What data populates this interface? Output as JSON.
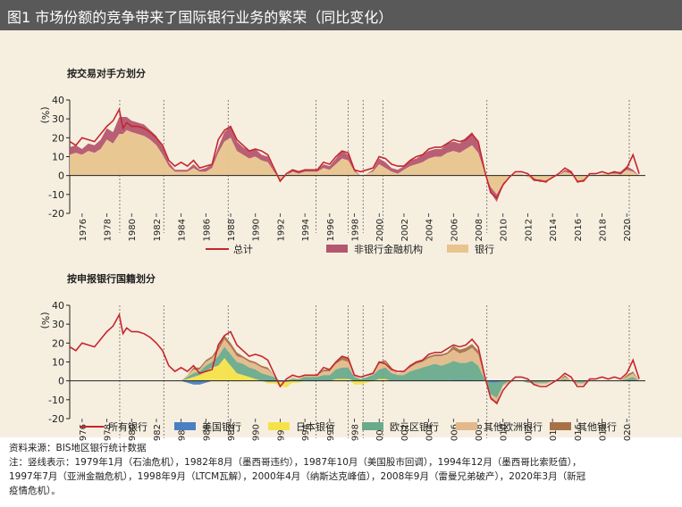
{
  "header": {
    "title": "图1  市场份额的竞争带来了国际银行业务的繁荣（同比变化）"
  },
  "colors": {
    "total_line": "#c6262e",
    "nonbank": "#b5566f",
    "banks": "#e8c48e",
    "us": "#4a7fc4",
    "japan": "#f5e24b",
    "euro": "#6aaa8c",
    "other_europe": "#e2b98b",
    "other": "#a87248",
    "background": "#f6efe0"
  },
  "chart_data": [
    {
      "type": "area",
      "title": "按交易对手方划分",
      "ylabel": "(%)",
      "ylim": [
        -20,
        40
      ],
      "yticks": [
        -20,
        -10,
        0,
        10,
        20,
        30,
        40
      ],
      "xlim": [
        1975,
        2021.5
      ],
      "xticks": [
        "1976",
        "1978",
        "1980",
        "1982",
        "1984",
        "1986",
        "1988",
        "1990",
        "1992",
        "1994",
        "1996",
        "1998",
        "2000",
        "2002",
        "2004",
        "2006",
        "2008",
        "2010",
        "2012",
        "2014",
        "2016",
        "2018",
        "2020"
      ],
      "event_lines": [
        1979.04,
        1982.6,
        1987.8,
        1994.9,
        1997.5,
        1998.7,
        2000.3,
        2008.7,
        2020.2
      ],
      "x": [
        1975.0,
        1975.5,
        1976.0,
        1976.5,
        1977.0,
        1977.5,
        1978.0,
        1978.5,
        1979.0,
        1979.3,
        1979.6,
        1980.0,
        1980.5,
        1981.0,
        1981.5,
        1982.0,
        1982.5,
        1983.0,
        1983.5,
        1984.0,
        1984.5,
        1985.0,
        1985.5,
        1986.0,
        1986.5,
        1987.0,
        1987.5,
        1988.0,
        1988.5,
        1989.0,
        1989.5,
        1990.0,
        1990.5,
        1991.0,
        1991.5,
        1992.0,
        1992.5,
        1993.0,
        1993.5,
        1994.0,
        1994.5,
        1995.0,
        1995.5,
        1996.0,
        1996.5,
        1997.0,
        1997.5,
        1998.0,
        1998.5,
        1999.0,
        1999.5,
        2000.0,
        2000.5,
        2001.0,
        2001.5,
        2002.0,
        2002.5,
        2003.0,
        2003.5,
        2004.0,
        2004.5,
        2005.0,
        2005.5,
        2006.0,
        2006.5,
        2007.0,
        2007.5,
        2008.0,
        2008.5,
        2009.0,
        2009.5,
        2010.0,
        2010.5,
        2011.0,
        2011.5,
        2012.0,
        2012.5,
        2013.0,
        2013.5,
        2014.0,
        2014.5,
        2015.0,
        2015.5,
        2016.0,
        2016.5,
        2017.0,
        2017.5,
        2018.0,
        2018.5,
        2019.0,
        2019.5,
        2020.0,
        2020.5,
        2021.0
      ],
      "series": [
        {
          "name": "银行",
          "values": [
            11,
            12,
            11,
            13,
            12,
            14,
            19,
            17,
            22,
            22,
            24,
            23,
            22,
            21,
            19,
            16,
            11,
            5,
            2,
            2,
            2,
            4,
            2,
            2,
            4,
            12,
            18,
            20,
            13,
            11,
            9,
            10,
            8,
            7,
            2,
            -2,
            0,
            2,
            1,
            2,
            2,
            2,
            4,
            3,
            6,
            9,
            8,
            2,
            0,
            1,
            2,
            6,
            4,
            2,
            1,
            3,
            5,
            6,
            7,
            9,
            10,
            10,
            12,
            13,
            12,
            14,
            16,
            12,
            2,
            -6,
            -10,
            -4,
            -1,
            1,
            1,
            -1,
            -2,
            -2,
            -3,
            -1,
            0,
            2,
            1,
            -3,
            -2,
            0,
            0,
            1,
            1,
            1,
            1,
            3,
            2,
            0
          ]
        },
        {
          "name": "非银行金融机构",
          "values": [
            4,
            4,
            3,
            4,
            4,
            5,
            6,
            6,
            9,
            9,
            7,
            6,
            6,
            6,
            5,
            5,
            4,
            2,
            1,
            1,
            1,
            2,
            1,
            2,
            2,
            3,
            5,
            6,
            5,
            4,
            4,
            4,
            3,
            3,
            1,
            -1,
            0,
            1,
            1,
            1,
            1,
            1,
            2,
            2,
            3,
            4,
            3,
            1,
            0,
            0,
            1,
            3,
            3,
            2,
            2,
            2,
            3,
            3,
            4,
            4,
            4,
            4,
            5,
            5,
            5,
            6,
            7,
            5,
            1,
            -3,
            -4,
            -1,
            0,
            0,
            0,
            0,
            -1,
            -1,
            -1,
            0,
            0,
            1,
            1,
            -1,
            -1,
            0,
            0,
            0,
            0,
            1,
            1,
            2,
            1,
            0
          ]
        },
        {
          "name": "总计",
          "values": [
            18,
            16,
            20,
            19,
            18,
            22,
            26,
            29,
            35,
            25,
            28,
            26,
            26,
            25,
            23,
            20,
            16,
            8,
            5,
            7,
            5,
            8,
            4,
            5,
            6,
            19,
            24,
            26,
            19,
            16,
            13,
            14,
            13,
            11,
            4,
            -3,
            1,
            3,
            2,
            3,
            3,
            3,
            7,
            6,
            10,
            13,
            12,
            3,
            2,
            3,
            4,
            10,
            9,
            6,
            5,
            5,
            8,
            10,
            11,
            14,
            15,
            15,
            17,
            19,
            18,
            19,
            22,
            18,
            3,
            -9,
            -12,
            -5,
            -1,
            2,
            2,
            1,
            -2,
            -3,
            -3,
            -1,
            1,
            4,
            2,
            -3,
            -3,
            1,
            1,
            2,
            1,
            2,
            1,
            4,
            11,
            1
          ]
        }
      ],
      "legend": [
        "总计",
        "非银行金融机构",
        "银行"
      ]
    },
    {
      "type": "area",
      "title": "按申报银行国籍划分",
      "ylabel": "(%)",
      "ylim": [
        -20,
        40
      ],
      "yticks": [
        -20,
        -10,
        0,
        10,
        20,
        30,
        40
      ],
      "xlim": [
        1975,
        2021.5
      ],
      "xticks": [
        "1976",
        "1978",
        "1980",
        "1982",
        "1984",
        "1986",
        "1988",
        "1990",
        "1992",
        "1994",
        "1996",
        "1998",
        "2000",
        "2002",
        "2004",
        "2006",
        "2008",
        "2010",
        "2012",
        "2014",
        "2016",
        "2018",
        "2020"
      ],
      "event_lines": [
        1979.04,
        1982.6,
        1987.8,
        1994.9,
        1997.5,
        1998.7,
        2000.3,
        2008.7,
        2020.2
      ],
      "x": [
        1975.0,
        1975.5,
        1976.0,
        1976.5,
        1977.0,
        1977.5,
        1978.0,
        1978.5,
        1979.0,
        1979.3,
        1979.6,
        1980.0,
        1980.5,
        1981.0,
        1981.5,
        1982.0,
        1982.5,
        1983.0,
        1983.5,
        1984.0,
        1984.5,
        1985.0,
        1985.5,
        1986.0,
        1986.5,
        1987.0,
        1987.5,
        1988.0,
        1988.5,
        1989.0,
        1989.5,
        1990.0,
        1990.5,
        1991.0,
        1991.5,
        1992.0,
        1992.5,
        1993.0,
        1993.5,
        1994.0,
        1994.5,
        1995.0,
        1995.5,
        1996.0,
        1996.5,
        1997.0,
        1997.5,
        1998.0,
        1998.5,
        1999.0,
        1999.5,
        2000.0,
        2000.5,
        2001.0,
        2001.5,
        2002.0,
        2002.5,
        2003.0,
        2003.5,
        2004.0,
        2004.5,
        2005.0,
        2005.5,
        2006.0,
        2006.5,
        2007.0,
        2007.5,
        2008.0,
        2008.5,
        2009.0,
        2009.5,
        2010.0,
        2010.5,
        2011.0,
        2011.5,
        2012.0,
        2012.5,
        2013.0,
        2013.5,
        2014.0,
        2014.5,
        2015.0,
        2015.5,
        2016.0,
        2016.5,
        2017.0,
        2017.5,
        2018.0,
        2018.5,
        2019.0,
        2019.5,
        2020.0,
        2020.5,
        2021.0
      ],
      "series": [
        {
          "name": "美国银行",
          "values": [
            0,
            0,
            0,
            0,
            0,
            0,
            0,
            0,
            0,
            0,
            0,
            0,
            0,
            0,
            0,
            0,
            0,
            0,
            0,
            0,
            -1,
            -2,
            -2,
            -1,
            0,
            0,
            0,
            0,
            0,
            0,
            0,
            0,
            0,
            -0.5,
            -0.5,
            -0.5,
            -0.5,
            0,
            0,
            0,
            0,
            0,
            0,
            0,
            0,
            0,
            0,
            0,
            0,
            0,
            0,
            0,
            0,
            0,
            0,
            0,
            0,
            0,
            0,
            0,
            0,
            0,
            0,
            0.5,
            0.5,
            0.5,
            0.5,
            0,
            0,
            -1,
            -1,
            0,
            0,
            0,
            0,
            0,
            0,
            0,
            0,
            0,
            0,
            0,
            0,
            0,
            0,
            0,
            0,
            0,
            0,
            0,
            0,
            0,
            0,
            0
          ]
        },
        {
          "name": "日本银行",
          "values": [
            0,
            0,
            0,
            0,
            0,
            0,
            0,
            0,
            0,
            0,
            0,
            0,
            0,
            0,
            0,
            0,
            0,
            0,
            0,
            0,
            1,
            2,
            3,
            5,
            7,
            8,
            12,
            8,
            4,
            3,
            2,
            1,
            0,
            -1,
            -1,
            -2,
            -3,
            -1,
            -1,
            0,
            0,
            0,
            0,
            0,
            1,
            1,
            1,
            -2,
            -2,
            -1,
            0,
            1,
            1,
            0,
            0,
            0,
            0,
            0,
            0,
            0,
            0,
            0,
            0,
            0,
            0,
            0,
            0,
            0,
            0,
            0,
            0,
            0,
            0,
            0,
            0,
            0,
            0,
            0,
            0,
            0,
            0,
            0,
            0,
            0,
            0,
            0,
            0,
            0,
            0,
            0,
            0,
            0,
            0,
            0
          ]
        },
        {
          "name": "欧元区银行",
          "values": [
            0,
            0,
            0,
            0,
            0,
            0,
            0,
            0,
            0,
            0,
            0,
            0,
            0,
            0,
            0,
            0,
            0,
            0,
            0,
            0,
            1,
            2,
            2,
            3,
            3,
            5,
            6,
            6,
            6,
            6,
            5,
            5,
            4,
            3,
            2,
            0,
            0,
            1,
            1,
            2,
            2,
            2,
            3,
            3,
            5,
            6,
            6,
            2,
            1,
            2,
            3,
            5,
            6,
            4,
            3,
            3,
            5,
            6,
            7,
            8,
            9,
            8,
            9,
            10,
            9,
            9,
            10,
            8,
            1,
            -6,
            -8,
            -2,
            0,
            0,
            0,
            -1,
            -1,
            -1,
            -1,
            0,
            0,
            1,
            0,
            -1,
            -1,
            0,
            0,
            0,
            0,
            0,
            0,
            1,
            2,
            0
          ]
        },
        {
          "name": "其他欧洲银行",
          "values": [
            0,
            0,
            0,
            0,
            0,
            0,
            0,
            0,
            0,
            0,
            0,
            0,
            0,
            0,
            0,
            0,
            0,
            0,
            0,
            0,
            1,
            2,
            1,
            2,
            2,
            3,
            4,
            4,
            3,
            3,
            3,
            3,
            3,
            3,
            1,
            -1,
            0,
            1,
            0,
            1,
            1,
            1,
            2,
            2,
            3,
            4,
            3,
            1,
            0,
            0,
            1,
            3,
            3,
            2,
            1,
            2,
            2,
            3,
            3,
            4,
            4,
            5,
            5,
            6,
            5,
            6,
            7,
            6,
            1,
            -2,
            -2,
            -1,
            -1,
            0,
            0,
            0,
            -1,
            -1,
            -1,
            0,
            0,
            1,
            0,
            -1,
            -1,
            0,
            0,
            0,
            0,
            0,
            0,
            1,
            2,
            0
          ]
        },
        {
          "name": "其他银行",
          "values": [
            0,
            0,
            0,
            0,
            0,
            0,
            0,
            0,
            0,
            0,
            0,
            0,
            0,
            0,
            0,
            0,
            0,
            0,
            0,
            0,
            0,
            1,
            1,
            1,
            1,
            2,
            2,
            2,
            2,
            1,
            1,
            1,
            1,
            1,
            0,
            0,
            0,
            0,
            0,
            0,
            0,
            0,
            1,
            1,
            1,
            2,
            2,
            0,
            0,
            0,
            0,
            1,
            1,
            1,
            0,
            0,
            1,
            1,
            1,
            1,
            1,
            1,
            1,
            2,
            2,
            2,
            2,
            2,
            0,
            -1,
            -1,
            0,
            0,
            0,
            0,
            0,
            0,
            0,
            0,
            0,
            0,
            1,
            0,
            0,
            0,
            0,
            0,
            0,
            0,
            0,
            0,
            1,
            1,
            0
          ]
        },
        {
          "name": "所有银行",
          "values": [
            18,
            16,
            20,
            19,
            18,
            22,
            26,
            29,
            35,
            25,
            28,
            26,
            26,
            25,
            23,
            20,
            16,
            8,
            5,
            7,
            5,
            8,
            4,
            5,
            6,
            19,
            24,
            26,
            19,
            16,
            13,
            14,
            13,
            11,
            4,
            -3,
            1,
            3,
            2,
            3,
            3,
            3,
            7,
            6,
            10,
            13,
            12,
            3,
            2,
            3,
            4,
            10,
            9,
            6,
            5,
            5,
            8,
            10,
            11,
            14,
            15,
            15,
            17,
            19,
            18,
            19,
            22,
            18,
            3,
            -9,
            -12,
            -5,
            -1,
            2,
            2,
            1,
            -2,
            -3,
            -3,
            -1,
            1,
            4,
            2,
            -3,
            -3,
            1,
            1,
            2,
            1,
            2,
            1,
            4,
            11,
            1
          ]
        }
      ],
      "legend": [
        "所有银行",
        "美国银行",
        "日本银行",
        "欧元区银行",
        "其他欧洲银行",
        "其他银行"
      ]
    }
  ],
  "footer": {
    "source": "资料来源：BIS地区银行统计数据",
    "note_line1": "注：竖线表示：1979年1月（石油危机），1982年8月（墨西哥违约），1987年10月（美国股市回调），1994年12月（墨西哥比索贬值），",
    "note_line2": "1997年7月（亚洲金融危机），1998年9月（LTCM瓦解），2000年4月（纳斯达克峰值），2008年9月（雷曼兄弟破产），2020年3月（新冠",
    "note_line3": "疫情危机）。"
  }
}
